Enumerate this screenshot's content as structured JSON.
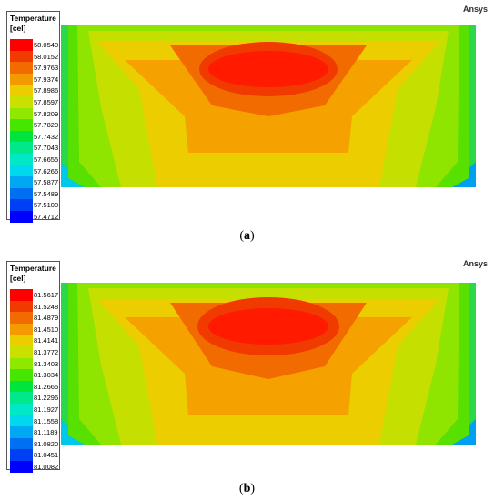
{
  "panels": [
    {
      "caption_open": "(",
      "caption_letter": "a",
      "caption_close": ")",
      "brand": "Ansys",
      "legend": {
        "title": "Temperature",
        "unit": "[cel]",
        "ticks": [
          "58.0540",
          "58.0152",
          "57.9763",
          "57.9374",
          "57.8986",
          "57.8597",
          "57.8209",
          "57.7820",
          "57.7432",
          "57.7043",
          "57.6655",
          "57.6266",
          "57.5877",
          "57.5489",
          "57.5100",
          "57.4712"
        ]
      }
    },
    {
      "caption_open": "(",
      "caption_letter": "b",
      "caption_close": ")",
      "brand": "Ansys",
      "legend": {
        "title": "Temperature",
        "unit": "[cel]",
        "ticks": [
          "81.5617",
          "81.5248",
          "81.4879",
          "81.4510",
          "81.4141",
          "81.3772",
          "81.3403",
          "81.3034",
          "81.2665",
          "81.2296",
          "81.1927",
          "81.1558",
          "81.1189",
          "81.0820",
          "81.0451",
          "81.0082"
        ]
      }
    }
  ],
  "colorbar": [
    "#ff0000",
    "#f03a00",
    "#f26b00",
    "#f39a00",
    "#ebcd00",
    "#c9e000",
    "#8fe800",
    "#45e600",
    "#00e53e",
    "#00e88a",
    "#00e8c6",
    "#00d8ee",
    "#00a8f2",
    "#0070f2",
    "#0040f5",
    "#0000ff"
  ]
}
